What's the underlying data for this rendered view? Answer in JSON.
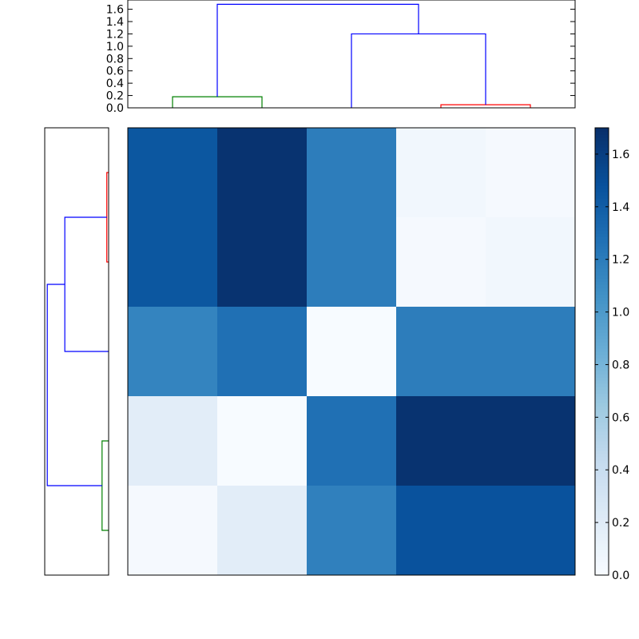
{
  "chart_data": [
    {
      "type": "dendrogram",
      "orientation": "top",
      "ylim": [
        0,
        1.75
      ],
      "yticks": [
        0.0,
        0.2,
        0.4,
        0.6,
        0.8,
        1.0,
        1.2,
        1.4,
        1.6
      ],
      "ytick_labels": [
        "0.0",
        "0.2",
        "0.4",
        "0.6",
        "0.8",
        "1.0",
        "1.2",
        "1.4",
        "1.6"
      ],
      "leaf_count": 5,
      "links": [
        {
          "left": 0,
          "right": 1,
          "height": 0.18,
          "color": "#008000"
        },
        {
          "left": 3,
          "right": 4,
          "height": 0.05,
          "color": "#ff0000"
        },
        {
          "left": 2,
          "right": "3+4",
          "height": 1.2,
          "color": "#0000ff"
        },
        {
          "left": "0+1",
          "right": "2+3+4",
          "height": 1.68,
          "color": "#0000ff"
        }
      ]
    },
    {
      "type": "dendrogram",
      "orientation": "left",
      "leaf_count": 5,
      "links": [
        {
          "left": 0,
          "right": 1,
          "height": 0.05,
          "color": "#ff0000"
        },
        {
          "left": "0+1",
          "right": 2,
          "height": 1.2,
          "color": "#0000ff"
        },
        {
          "left": 3,
          "right": 4,
          "height": 0.18,
          "color": "#008000"
        },
        {
          "left": "0+1+2",
          "right": "3+4",
          "height": 1.68,
          "color": "#0000ff"
        }
      ]
    },
    {
      "type": "heatmap",
      "rows": 5,
      "cols": 5,
      "values": [
        [
          1.45,
          1.68,
          1.2,
          0.05,
          0.02
        ],
        [
          1.45,
          1.68,
          1.2,
          0.02,
          0.05
        ],
        [
          1.15,
          1.28,
          0.0,
          1.2,
          1.2
        ],
        [
          0.18,
          0.0,
          1.28,
          1.68,
          1.68
        ],
        [
          0.02,
          0.18,
          1.18,
          1.48,
          1.48
        ]
      ],
      "colormap": "Blues",
      "vmin": 0.0,
      "vmax": 1.7
    },
    {
      "type": "colorbar",
      "range": [
        0.0,
        1.7
      ],
      "ticks": [
        0.0,
        0.2,
        0.4,
        0.6,
        0.8,
        1.0,
        1.2,
        1.4,
        1.6
      ],
      "tick_labels": [
        "0.0",
        "0.2",
        "0.4",
        "0.6",
        "0.8",
        "1.0",
        "1.2",
        "1.4",
        "1.6"
      ],
      "colormap": "Blues"
    }
  ]
}
